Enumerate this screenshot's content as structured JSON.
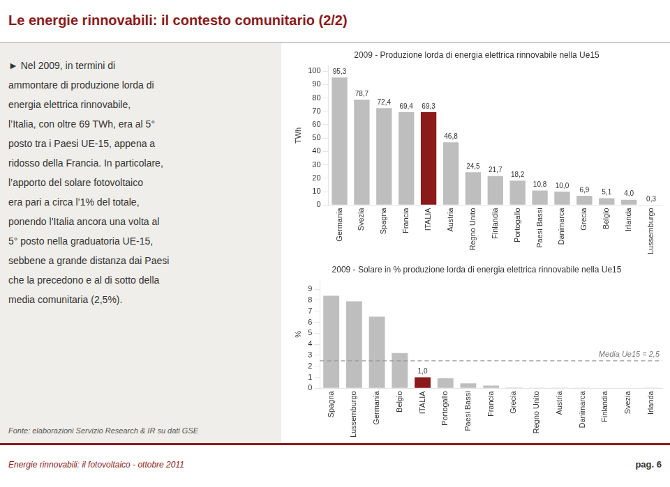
{
  "title": "Le energie rinnovabili: il contesto comunitario (2/2)",
  "paragraph": [
    "► Nel 2009, in termini di",
    "ammontare di produzione lorda di",
    "energia elettrica rinnovabile,",
    "l’Italia, con oltre 69 TWh, era al 5°",
    "posto tra i Paesi UE-15, appena a",
    "ridosso della Francia. In particolare,",
    "l’apporto del solare fotovoltaico",
    "era pari a circa l’1% del totale,",
    "ponendo l’Italia ancora una volta al",
    "5° posto nella graduatoria UE-15,",
    "sebbene a grande distanza dai Paesi",
    "che la precedono e al di sotto della",
    "media comunitaria (2,5%)."
  ],
  "source": "Fonte: elaborazioni Servizio Research & IR su dati GSE",
  "footer": "Energie rinnovabili: il fotovoltaico - ottobre 2011",
  "footer_right": "pag. 6",
  "chart_data": [
    {
      "type": "bar",
      "title": "2009 - Produzione lorda di energia elettrica rinnovabile nella Ue15",
      "ylabel": "TWh",
      "categories": [
        "Germania",
        "Svezia",
        "Spagna",
        "Francia",
        "ITALIA",
        "Austria",
        "Regno Unito",
        "Finlandia",
        "Portogallo",
        "Paesi Bassi",
        "Danimarca",
        "Grecia",
        "Belgio",
        "Irlanda",
        "Lussemburgo"
      ],
      "values": [
        95.3,
        78.7,
        72.4,
        69.4,
        69.3,
        46.8,
        24.5,
        21.7,
        18.2,
        10.8,
        10.0,
        6.9,
        5.1,
        4.0,
        0.3
      ],
      "value_labels": [
        "95,3",
        "78,7",
        "72,4",
        "69,4",
        "69,3",
        "46,8",
        "24,5",
        "21,7",
        "18,2",
        "10,8",
        "10,0",
        "6,9",
        "5,1",
        "4,0",
        "0,3"
      ],
      "data_labels": true,
      "colors": [
        "#BEBEBE",
        "#BEBEBE",
        "#BEBEBE",
        "#BEBEBE",
        "#8B1A1A",
        "#BEBEBE",
        "#BEBEBE",
        "#BEBEBE",
        "#BEBEBE",
        "#BEBEBE",
        "#BEBEBE",
        "#BEBEBE",
        "#BEBEBE",
        "#BEBEBE",
        "#BEBEBE"
      ],
      "ylim": [
        0,
        104
      ],
      "yticks": [
        0,
        10,
        20,
        30,
        40,
        50,
        60,
        70,
        80,
        90,
        100
      ],
      "grid": false
    },
    {
      "type": "bar",
      "title": "2009 - Solare in % produzione lorda di energia elettrica rinnovabile nella Ue15",
      "ylabel": "%",
      "categories": [
        "Spagna",
        "Lussemburgo",
        "Germania",
        "Belgio",
        "ITALIA",
        "Portogallo",
        "Paesi Bassi",
        "Francia",
        "Grecia",
        "Regno Unito",
        "Austria",
        "Danimarca",
        "Finlandia",
        "Svezia",
        "Irlanda"
      ],
      "values": [
        8.4,
        7.9,
        6.5,
        3.2,
        1.0,
        0.9,
        0.45,
        0.25,
        0.07,
        0.06,
        0.05,
        0.05,
        0.04,
        0.04,
        0.03
      ],
      "value_labels": [
        null,
        null,
        null,
        null,
        "1,0",
        null,
        null,
        null,
        null,
        null,
        null,
        null,
        null,
        null,
        null
      ],
      "data_labels": true,
      "colors": [
        "#BEBEBE",
        "#BEBEBE",
        "#BEBEBE",
        "#BEBEBE",
        "#8B1A1A",
        "#BEBEBE",
        "#BEBEBE",
        "#BEBEBE",
        "#BEBEBE",
        "#BEBEBE",
        "#BEBEBE",
        "#BEBEBE",
        "#BEBEBE",
        "#BEBEBE",
        "#BEBEBE"
      ],
      "ylim": [
        0,
        9.8
      ],
      "yticks": [
        0,
        1,
        2,
        3,
        4,
        5,
        6,
        7,
        8,
        9
      ],
      "mean_line": {
        "value": 2.5,
        "label": "Media Ue15 = 2,5",
        "line_style": "dashed"
      },
      "grid": false
    }
  ]
}
